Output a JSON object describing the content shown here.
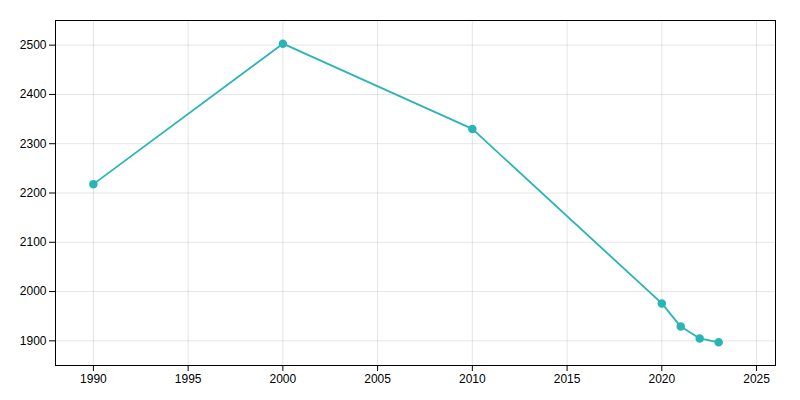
{
  "chart_data": {
    "type": "line",
    "x": [
      1990,
      2000,
      2010,
      2020,
      2021,
      2022,
      2023
    ],
    "values": [
      2218,
      2503,
      2330,
      1976,
      1929,
      1905,
      1897
    ],
    "color": "#2ab5b5",
    "marker": "circle",
    "xlim": [
      1988,
      2026
    ],
    "ylim": [
      1850,
      2550
    ],
    "xticks": [
      1990,
      1995,
      2000,
      2005,
      2010,
      2015,
      2020,
      2025
    ],
    "yticks": [
      1900,
      2000,
      2100,
      2200,
      2300,
      2400,
      2500
    ],
    "grid": true
  }
}
